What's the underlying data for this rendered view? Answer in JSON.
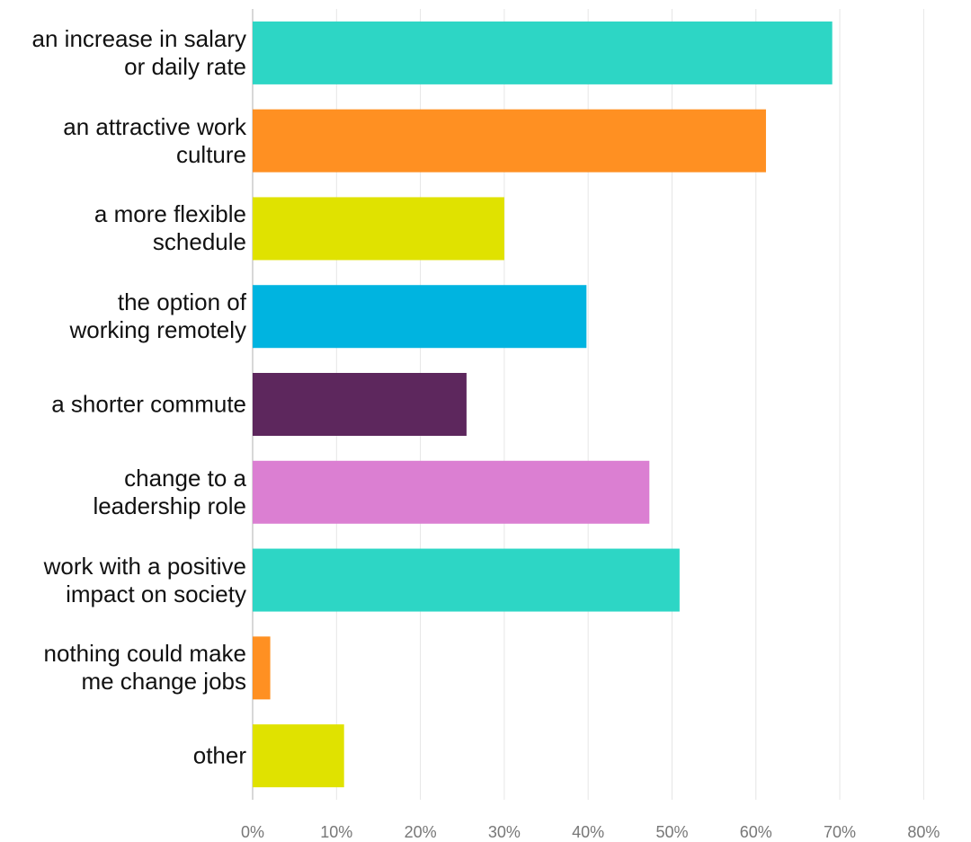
{
  "chart_data": {
    "type": "barh",
    "categories": [
      "an increase in salary\nor daily rate",
      "an attractive work\nculture",
      "a more flexible\nschedule",
      "the option of\nworking remotely",
      "a shorter commute",
      "change to a\nleadership role",
      "work with a positive\nimpact on society",
      "nothing could make\nme change jobs",
      "other"
    ],
    "values": [
      69.1,
      61.2,
      30.0,
      39.8,
      25.5,
      47.3,
      50.9,
      2.1,
      10.9
    ],
    "colors": [
      "#2dd6c5",
      "#ff9022",
      "#e0e200",
      "#00b4e0",
      "#5d275d",
      "#db7fd2",
      "#2dd6c5",
      "#ff9022",
      "#e0e200"
    ],
    "xlim": [
      0,
      85
    ],
    "xticks": [
      {
        "value": 0,
        "label": "0%"
      },
      {
        "value": 10,
        "label": "10%"
      },
      {
        "value": 20,
        "label": "20%"
      },
      {
        "value": 30,
        "label": "30%"
      },
      {
        "value": 40,
        "label": "40%"
      },
      {
        "value": 50,
        "label": "50%"
      },
      {
        "value": 60,
        "label": "60%"
      },
      {
        "value": 70,
        "label": "70%"
      },
      {
        "value": 80,
        "label": "80%"
      }
    ],
    "grid": true
  }
}
